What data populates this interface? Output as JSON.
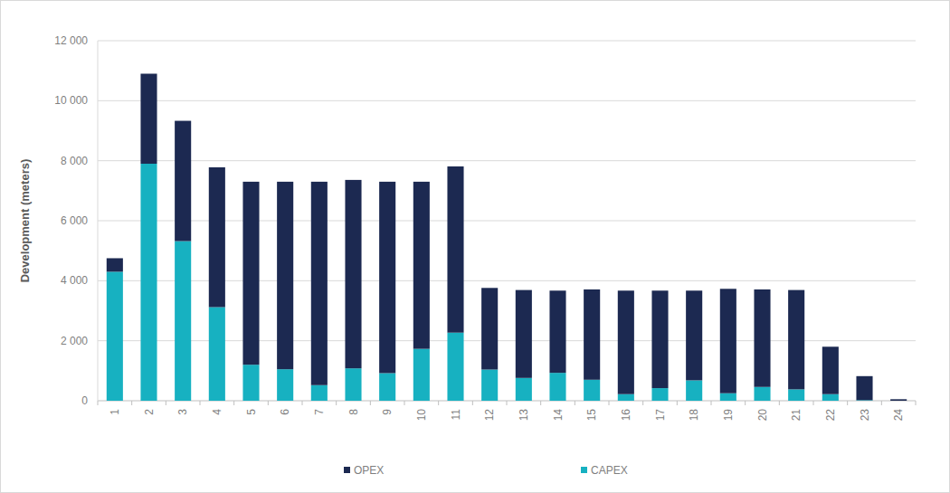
{
  "chart_data": {
    "type": "bar",
    "stacked": true,
    "ylabel": "Development (meters)",
    "categories": [
      "1",
      "2",
      "3",
      "4",
      "5",
      "6",
      "7",
      "8",
      "9",
      "10",
      "11",
      "12",
      "13",
      "14",
      "15",
      "16",
      "17",
      "18",
      "19",
      "20",
      "21",
      "22",
      "23",
      "24"
    ],
    "series": [
      {
        "name": "CAPEX",
        "color": "#17b1c1",
        "values": [
          4300,
          7900,
          5320,
          3120,
          1200,
          1050,
          520,
          1080,
          920,
          1730,
          2270,
          1040,
          760,
          930,
          700,
          220,
          420,
          680,
          250,
          460,
          380,
          220,
          20,
          0
        ]
      },
      {
        "name": "OPEX",
        "color": "#1c2951",
        "values": [
          450,
          3000,
          4010,
          4660,
          6100,
          6250,
          6780,
          6280,
          6380,
          5570,
          5540,
          2720,
          2930,
          2740,
          3010,
          3450,
          3250,
          2990,
          3480,
          3250,
          3310,
          1580,
          800,
          50
        ]
      }
    ],
    "ylim": [
      0,
      12000
    ],
    "yticks": [
      0,
      {
        "value": 2000,
        "label": "2 000"
      },
      {
        "value": 4000,
        "label": "4 000"
      },
      {
        "value": 6000,
        "label": "6 000"
      },
      {
        "value": 8000,
        "label": "8 000"
      },
      {
        "value": 10000,
        "label": "10 000"
      },
      {
        "value": 12000,
        "label": "12 000"
      }
    ],
    "grid": true,
    "legend": "bottom"
  }
}
